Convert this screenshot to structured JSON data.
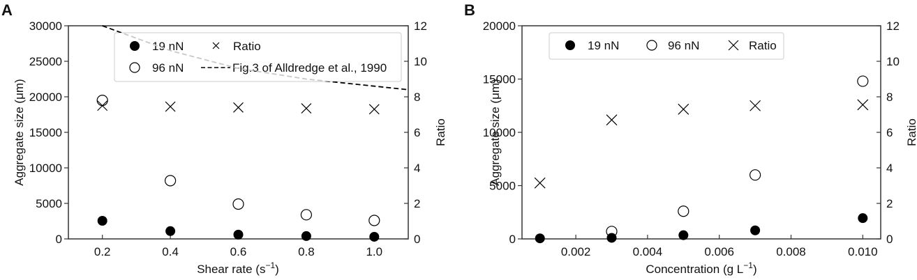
{
  "chart_data": [
    {
      "panel": "A",
      "type": "scatter",
      "xlabel": "Shear rate (s−1)",
      "ylabel": "Aggregate size (μm)",
      "y2label": "Ratio",
      "xlim": [
        0.1,
        1.1
      ],
      "ylim": [
        0,
        30000
      ],
      "y2lim": [
        0,
        12
      ],
      "xticks": [
        "0.2",
        "0.4",
        "0.6",
        "0.8",
        "1.0"
      ],
      "yticks": [
        "0",
        "5000",
        "10000",
        "15000",
        "20000",
        "25000",
        "30000"
      ],
      "y2ticks": [
        "0",
        "2",
        "4",
        "6",
        "8",
        "10",
        "12"
      ],
      "x": [
        0.2,
        0.4,
        0.6,
        0.8,
        1.0
      ],
      "series": [
        {
          "name": "19 nN",
          "marker": "filled-circle",
          "axis": "left",
          "values": [
            2550,
            1100,
            600,
            400,
            300
          ]
        },
        {
          "name": "96 nN",
          "marker": "open-circle",
          "axis": "left",
          "values": [
            19500,
            8200,
            4900,
            3400,
            2600
          ]
        },
        {
          "name": "Ratio",
          "marker": "x",
          "axis": "right",
          "values": [
            7.5,
            7.45,
            7.4,
            7.35,
            7.3
          ]
        },
        {
          "name": "Fig.3 of Alldredge et al., 1990",
          "marker": "dashed-line",
          "axis": "right",
          "x": [
            0.2,
            0.4,
            0.6,
            0.8,
            1.0,
            1.1
          ],
          "values": [
            12.0,
            10.6,
            9.6,
            9.0,
            8.6,
            8.4
          ]
        }
      ],
      "legend": {
        "position": "upper right",
        "entries": [
          "19 nN",
          "Ratio",
          "96 nN",
          "Fig.3 of Alldredge et al., 1990"
        ]
      }
    },
    {
      "panel": "B",
      "type": "scatter",
      "xlabel": "Concentration (g L−1)",
      "ylabel": "Aggregate size (μm)",
      "y2label": "Ratio",
      "xlim": [
        0.0005,
        0.0105
      ],
      "ylim": [
        0,
        20000
      ],
      "y2lim": [
        0,
        12
      ],
      "xticks": [
        "0.002",
        "0.004",
        "0.006",
        "0.008",
        "0.010"
      ],
      "yticks": [
        "0",
        "5000",
        "10000",
        "15000",
        "20000"
      ],
      "y2ticks": [
        "0",
        "2",
        "4",
        "6",
        "8",
        "10",
        "12"
      ],
      "x": [
        0.001,
        0.003,
        0.005,
        0.007,
        0.01
      ],
      "series": [
        {
          "name": "19 nN",
          "marker": "filled-circle",
          "axis": "left",
          "values": [
            50,
            100,
            350,
            800,
            1950
          ]
        },
        {
          "name": "96 nN",
          "marker": "open-circle",
          "axis": "left",
          "values": [
            null,
            700,
            2600,
            6000,
            14800
          ]
        },
        {
          "name": "Ratio",
          "marker": "x",
          "axis": "right",
          "values": [
            3.15,
            6.7,
            7.3,
            7.5,
            7.55
          ]
        }
      ],
      "legend": {
        "position": "upper",
        "entries": [
          "19 nN",
          "96 nN",
          "Ratio"
        ]
      }
    }
  ],
  "panels": {
    "a": {
      "letter": "A",
      "xlabel": "Shear rate (s",
      "xlabel_sup": "−1",
      "xlabel_end": ")",
      "ylabel": "Aggregate size (μm)",
      "y2label": "Ratio",
      "legend": {
        "l1": "19 nN",
        "l2": "Ratio",
        "l3": "96 nN",
        "l4": "Fig.3 of Alldredge et al., 1990"
      }
    },
    "b": {
      "letter": "B",
      "xlabel": "Concentration (g L",
      "xlabel_sup": "−1",
      "xlabel_end": ")",
      "ylabel": "Aggregate size (μm)",
      "y2label": "Ratio",
      "legend": {
        "l1": "19 nN",
        "l2": "96 nN",
        "l3": "Ratio"
      }
    }
  }
}
